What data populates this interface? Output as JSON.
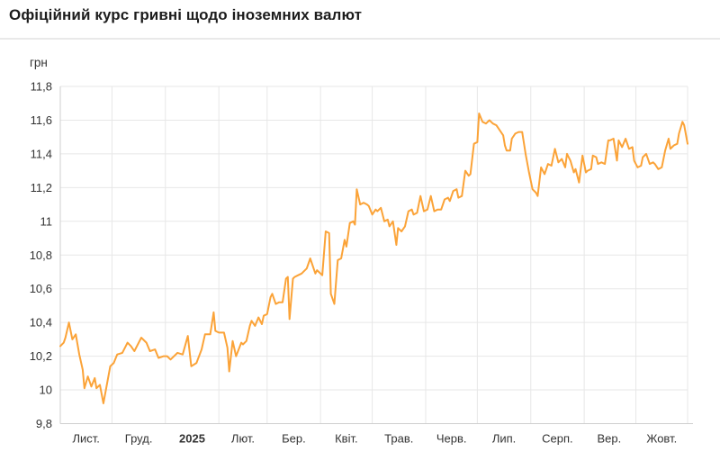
{
  "header": {
    "title": "Офіційний курс гривні щодо іноземних валют"
  },
  "chart_data": {
    "type": "line",
    "title": "Офіційний курс гривні щодо іноземних валют",
    "ylabel": "грн",
    "xlabel": "",
    "ylim": [
      9.8,
      11.8
    ],
    "xlim": [
      0,
      364
    ],
    "x_unit": "days since 2024-11-01",
    "grid": true,
    "legend": "none",
    "colors": {
      "line": "#fba338",
      "grid": "#e7e7e7",
      "axis": "#cfcfcf",
      "text": "#333333"
    },
    "y_ticks": [
      {
        "value": 9.8,
        "label": "9,8"
      },
      {
        "value": 10,
        "label": "10"
      },
      {
        "value": 10.2,
        "label": "10,2"
      },
      {
        "value": 10.4,
        "label": "10,4"
      },
      {
        "value": 10.6,
        "label": "10,6"
      },
      {
        "value": 10.8,
        "label": "10,8"
      },
      {
        "value": 11,
        "label": "11"
      },
      {
        "value": 11.2,
        "label": "11,2"
      },
      {
        "value": 11.4,
        "label": "11,4"
      },
      {
        "value": 11.6,
        "label": "11,6"
      },
      {
        "value": 11.8,
        "label": "11,8"
      }
    ],
    "month_start_days": [
      0,
      30,
      61,
      92,
      120,
      151,
      181,
      212,
      242,
      273,
      304,
      334,
      364
    ],
    "x_labels": [
      {
        "label": "Лист.",
        "center_day": 15,
        "bold": false
      },
      {
        "label": "Груд.",
        "center_day": 45.5,
        "bold": false
      },
      {
        "label": "2025",
        "center_day": 76.5,
        "bold": true
      },
      {
        "label": "Лют.",
        "center_day": 106,
        "bold": false
      },
      {
        "label": "Бер.",
        "center_day": 135.5,
        "bold": false
      },
      {
        "label": "Квіт.",
        "center_day": 166,
        "bold": false
      },
      {
        "label": "Трав.",
        "center_day": 196.5,
        "bold": false
      },
      {
        "label": "Черв.",
        "center_day": 227,
        "bold": false
      },
      {
        "label": "Лип.",
        "center_day": 257.5,
        "bold": false
      },
      {
        "label": "Серп.",
        "center_day": 288.5,
        "bold": false
      },
      {
        "label": "Вер.",
        "center_day": 318.5,
        "bold": false
      },
      {
        "label": "Жовт.",
        "center_day": 349,
        "bold": false
      }
    ],
    "series": [
      {
        "name": "грн",
        "points": [
          [
            0,
            10.26
          ],
          [
            2,
            10.28
          ],
          [
            3,
            10.31
          ],
          [
            5,
            10.4
          ],
          [
            7,
            10.3
          ],
          [
            9,
            10.33
          ],
          [
            11,
            10.21
          ],
          [
            13,
            10.12
          ],
          [
            14,
            10.01
          ],
          [
            16,
            10.08
          ],
          [
            18,
            10.02
          ],
          [
            20,
            10.07
          ],
          [
            21,
            10.01
          ],
          [
            23,
            10.03
          ],
          [
            25,
            9.92
          ],
          [
            27,
            10.03
          ],
          [
            29,
            10.14
          ],
          [
            31,
            10.16
          ],
          [
            33,
            10.21
          ],
          [
            36,
            10.22
          ],
          [
            39,
            10.28
          ],
          [
            41,
            10.26
          ],
          [
            43,
            10.23
          ],
          [
            47,
            10.31
          ],
          [
            50,
            10.28
          ],
          [
            52,
            10.23
          ],
          [
            55,
            10.24
          ],
          [
            57,
            10.19
          ],
          [
            60,
            10.2
          ],
          [
            62,
            10.2
          ],
          [
            64,
            10.18
          ],
          [
            68,
            10.22
          ],
          [
            71,
            10.21
          ],
          [
            74,
            10.32
          ],
          [
            76,
            10.14
          ],
          [
            79,
            10.16
          ],
          [
            82,
            10.24
          ],
          [
            84,
            10.33
          ],
          [
            87,
            10.33
          ],
          [
            89,
            10.46
          ],
          [
            90,
            10.35
          ],
          [
            92,
            10.34
          ],
          [
            95,
            10.34
          ],
          [
            97,
            10.25
          ],
          [
            98,
            10.11
          ],
          [
            100,
            10.29
          ],
          [
            102,
            10.2
          ],
          [
            105,
            10.28
          ],
          [
            106,
            10.27
          ],
          [
            108,
            10.29
          ],
          [
            110,
            10.38
          ],
          [
            111,
            10.41
          ],
          [
            113,
            10.38
          ],
          [
            115,
            10.43
          ],
          [
            117,
            10.39
          ],
          [
            118,
            10.44
          ],
          [
            120,
            10.45
          ],
          [
            122,
            10.55
          ],
          [
            123,
            10.57
          ],
          [
            125,
            10.51
          ],
          [
            127,
            10.52
          ],
          [
            129,
            10.52
          ],
          [
            131,
            10.66
          ],
          [
            132,
            10.67
          ],
          [
            133,
            10.42
          ],
          [
            135,
            10.66
          ],
          [
            136,
            10.67
          ],
          [
            138,
            10.68
          ],
          [
            140,
            10.69
          ],
          [
            143,
            10.72
          ],
          [
            145,
            10.78
          ],
          [
            148,
            10.69
          ],
          [
            149,
            10.71
          ],
          [
            152,
            10.68
          ],
          [
            154,
            10.94
          ],
          [
            156,
            10.93
          ],
          [
            157,
            10.57
          ],
          [
            159,
            10.51
          ],
          [
            161,
            10.77
          ],
          [
            163,
            10.78
          ],
          [
            165,
            10.89
          ],
          [
            166,
            10.85
          ],
          [
            168,
            10.99
          ],
          [
            170,
            11.0
          ],
          [
            171,
            10.98
          ],
          [
            172,
            11.19
          ],
          [
            174,
            11.1
          ],
          [
            176,
            11.11
          ],
          [
            178,
            11.1
          ],
          [
            179,
            11.09
          ],
          [
            181,
            11.04
          ],
          [
            183,
            11.07
          ],
          [
            184,
            11.06
          ],
          [
            186,
            11.08
          ],
          [
            188,
            11.0
          ],
          [
            190,
            11.01
          ],
          [
            191,
            10.97
          ],
          [
            193,
            11.0
          ],
          [
            195,
            10.86
          ],
          [
            196,
            10.96
          ],
          [
            198,
            10.94
          ],
          [
            200,
            10.97
          ],
          [
            202,
            11.06
          ],
          [
            204,
            11.07
          ],
          [
            205,
            11.04
          ],
          [
            207,
            11.05
          ],
          [
            209,
            11.15
          ],
          [
            211,
            11.06
          ],
          [
            213,
            11.07
          ],
          [
            215,
            11.15
          ],
          [
            217,
            11.06
          ],
          [
            219,
            11.07
          ],
          [
            221,
            11.07
          ],
          [
            223,
            11.13
          ],
          [
            225,
            11.14
          ],
          [
            226,
            11.12
          ],
          [
            228,
            11.18
          ],
          [
            230,
            11.19
          ],
          [
            231,
            11.14
          ],
          [
            233,
            11.15
          ],
          [
            235,
            11.3
          ],
          [
            237,
            11.27
          ],
          [
            238,
            11.28
          ],
          [
            240,
            11.46
          ],
          [
            242,
            11.47
          ],
          [
            243,
            11.64
          ],
          [
            245,
            11.59
          ],
          [
            247,
            11.58
          ],
          [
            249,
            11.6
          ],
          [
            251,
            11.58
          ],
          [
            253,
            11.57
          ],
          [
            255,
            11.54
          ],
          [
            257,
            11.51
          ],
          [
            258,
            11.45
          ],
          [
            259,
            11.42
          ],
          [
            261,
            11.42
          ],
          [
            262,
            11.49
          ],
          [
            264,
            11.52
          ],
          [
            266,
            11.53
          ],
          [
            268,
            11.53
          ],
          [
            270,
            11.4
          ],
          [
            272,
            11.29
          ],
          [
            274,
            11.19
          ],
          [
            276,
            11.17
          ],
          [
            277,
            11.15
          ],
          [
            279,
            11.32
          ],
          [
            281,
            11.28
          ],
          [
            283,
            11.34
          ],
          [
            285,
            11.33
          ],
          [
            287,
            11.43
          ],
          [
            289,
            11.35
          ],
          [
            291,
            11.37
          ],
          [
            293,
            11.32
          ],
          [
            294,
            11.4
          ],
          [
            296,
            11.36
          ],
          [
            298,
            11.29
          ],
          [
            299,
            11.31
          ],
          [
            301,
            11.23
          ],
          [
            303,
            11.39
          ],
          [
            305,
            11.29
          ],
          [
            306,
            11.3
          ],
          [
            308,
            11.31
          ],
          [
            309,
            11.39
          ],
          [
            311,
            11.38
          ],
          [
            312,
            11.34
          ],
          [
            314,
            11.35
          ],
          [
            316,
            11.34
          ],
          [
            318,
            11.48
          ],
          [
            319,
            11.48
          ],
          [
            321,
            11.49
          ],
          [
            323,
            11.36
          ],
          [
            324,
            11.48
          ],
          [
            326,
            11.44
          ],
          [
            328,
            11.49
          ],
          [
            330,
            11.43
          ],
          [
            332,
            11.44
          ],
          [
            333,
            11.36
          ],
          [
            335,
            11.32
          ],
          [
            337,
            11.33
          ],
          [
            338,
            11.38
          ],
          [
            340,
            11.4
          ],
          [
            342,
            11.34
          ],
          [
            344,
            11.35
          ],
          [
            345,
            11.34
          ],
          [
            347,
            11.31
          ],
          [
            349,
            11.32
          ],
          [
            351,
            11.42
          ],
          [
            353,
            11.49
          ],
          [
            354,
            11.43
          ],
          [
            356,
            11.45
          ],
          [
            358,
            11.46
          ],
          [
            359,
            11.52
          ],
          [
            361,
            11.59
          ],
          [
            362,
            11.57
          ],
          [
            364,
            11.46
          ]
        ]
      }
    ]
  }
}
